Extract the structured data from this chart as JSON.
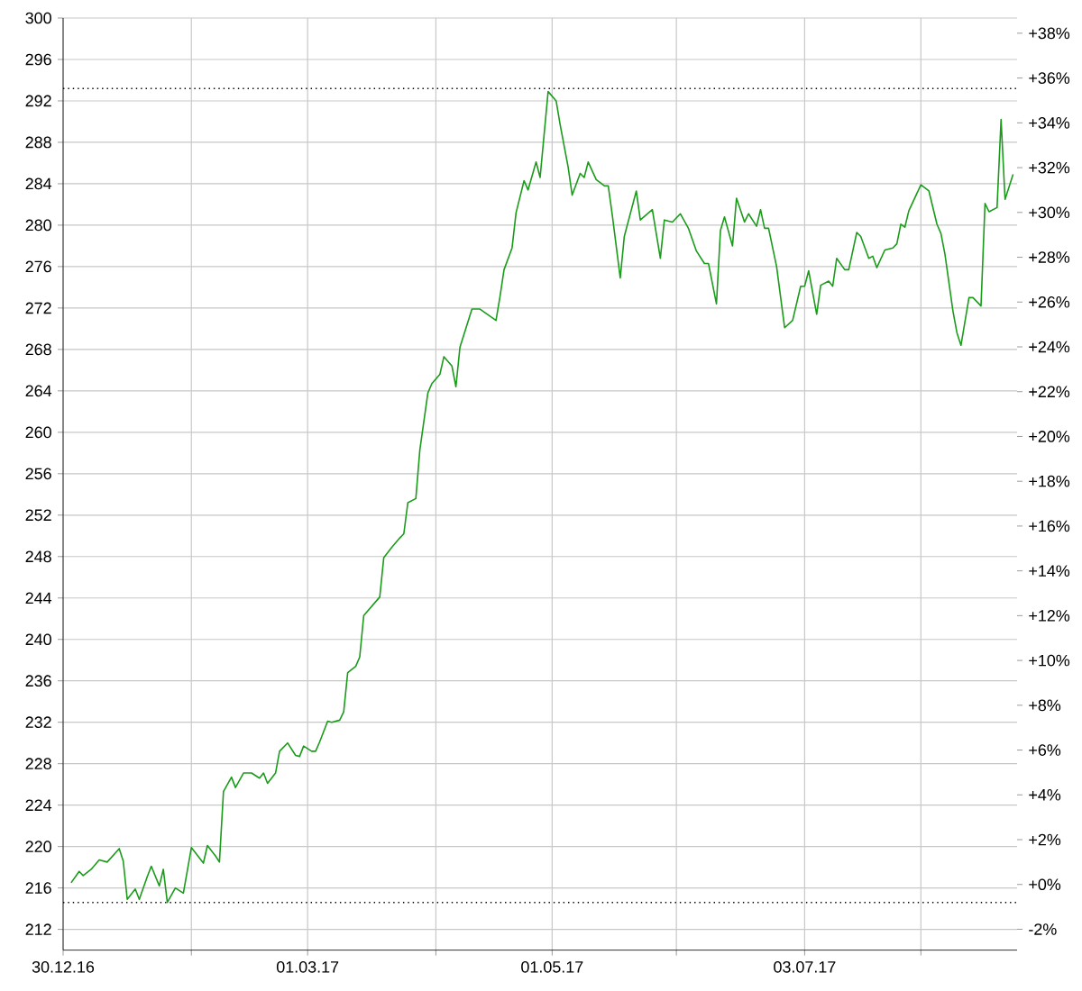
{
  "chart_data": {
    "type": "line",
    "x": [
      "2017-01-01",
      "2017-01-03",
      "2017-01-04",
      "2017-01-06",
      "2017-01-08",
      "2017-01-10",
      "2017-01-13",
      "2017-01-14",
      "2017-01-15",
      "2017-01-17",
      "2017-01-18",
      "2017-01-20",
      "2017-01-21",
      "2017-01-23",
      "2017-01-24",
      "2017-01-25",
      "2017-01-27",
      "2017-01-29",
      "2017-01-31",
      "2017-02-01",
      "2017-02-03",
      "2017-02-04",
      "2017-02-06",
      "2017-02-07",
      "2017-02-08",
      "2017-02-10",
      "2017-02-11",
      "2017-02-13",
      "2017-02-15",
      "2017-02-17",
      "2017-02-18",
      "2017-02-19",
      "2017-02-21",
      "2017-02-22",
      "2017-02-24",
      "2017-02-26",
      "2017-02-27",
      "2017-02-28",
      "2017-03-02",
      "2017-03-03",
      "2017-03-04",
      "2017-03-06",
      "2017-03-07",
      "2017-03-09",
      "2017-03-10",
      "2017-03-11",
      "2017-03-13",
      "2017-03-14",
      "2017-03-15",
      "2017-03-17",
      "2017-03-19",
      "2017-03-20",
      "2017-03-22",
      "2017-03-24",
      "2017-03-25",
      "2017-03-26",
      "2017-03-28",
      "2017-03-29",
      "2017-03-31",
      "2017-04-01",
      "2017-04-03",
      "2017-04-04",
      "2017-04-06",
      "2017-04-07",
      "2017-04-08",
      "2017-04-11",
      "2017-04-13",
      "2017-04-17",
      "2017-04-18",
      "2017-04-19",
      "2017-04-21",
      "2017-04-22",
      "2017-04-24",
      "2017-04-25",
      "2017-04-27",
      "2017-04-28",
      "2017-04-30",
      "2017-05-02",
      "2017-05-03",
      "2017-05-05",
      "2017-05-06",
      "2017-05-08",
      "2017-05-09",
      "2017-05-10",
      "2017-05-12",
      "2017-05-14",
      "2017-05-15",
      "2017-05-16",
      "2017-05-18",
      "2017-05-19",
      "2017-05-22",
      "2017-05-23",
      "2017-05-26",
      "2017-05-28",
      "2017-05-29",
      "2017-05-31",
      "2017-06-02",
      "2017-06-04",
      "2017-06-06",
      "2017-06-08",
      "2017-06-09",
      "2017-06-11",
      "2017-06-12",
      "2017-06-13",
      "2017-06-15",
      "2017-06-16",
      "2017-06-18",
      "2017-06-19",
      "2017-06-21",
      "2017-06-22",
      "2017-06-23",
      "2017-06-24",
      "2017-06-26",
      "2017-06-28",
      "2017-06-30",
      "2017-07-02",
      "2017-07-03",
      "2017-07-04",
      "2017-07-06",
      "2017-07-07",
      "2017-07-09",
      "2017-07-10",
      "2017-07-11",
      "2017-07-13",
      "2017-07-14",
      "2017-07-16",
      "2017-07-17",
      "2017-07-19",
      "2017-07-20",
      "2017-07-21",
      "2017-07-23",
      "2017-07-25",
      "2017-07-26",
      "2017-07-27",
      "2017-07-28",
      "2017-07-29",
      "2017-08-01",
      "2017-08-03",
      "2017-08-05",
      "2017-08-06",
      "2017-08-07",
      "2017-08-09",
      "2017-08-10",
      "2017-08-11",
      "2017-08-13",
      "2017-08-14",
      "2017-08-16",
      "2017-08-17",
      "2017-08-18",
      "2017-08-20",
      "2017-08-21",
      "2017-08-22",
      "2017-08-24"
    ],
    "series": [
      {
        "color": "#1a9c1a",
        "values": [
          216.5,
          217.6,
          217.2,
          217.8,
          218.7,
          218.5,
          219.8,
          218.6,
          214.9,
          215.9,
          214.9,
          217.1,
          218.1,
          216.2,
          217.8,
          214.6,
          216.0,
          215.5,
          219.9,
          219.4,
          218.4,
          220.1,
          219.1,
          218.5,
          225.3,
          226.7,
          225.7,
          227.1,
          227.1,
          226.6,
          227.1,
          226.1,
          227.1,
          229.2,
          230.0,
          228.8,
          228.7,
          229.7,
          229.2,
          229.2,
          230.1,
          232.1,
          232.0,
          232.2,
          233.0,
          236.8,
          237.4,
          238.3,
          242.3,
          243.2,
          244.1,
          247.9,
          248.9,
          249.8,
          250.2,
          253.2,
          253.6,
          258.3,
          263.8,
          264.7,
          265.6,
          267.3,
          266.4,
          264.4,
          268.2,
          271.9,
          271.9,
          270.8,
          273.1,
          275.7,
          277.8,
          281.2,
          284.3,
          283.4,
          286.1,
          284.6,
          292.9,
          292.0,
          289.7,
          285.6,
          282.9,
          285.0,
          284.6,
          286.1,
          284.4,
          283.8,
          283.8,
          281.0,
          274.9,
          278.9,
          283.3,
          280.5,
          281.5,
          276.8,
          280.5,
          280.3,
          281.1,
          279.7,
          277.5,
          276.3,
          276.3,
          272.4,
          279.5,
          280.8,
          278.0,
          282.6,
          280.3,
          281.1,
          279.9,
          281.5,
          279.7,
          279.7,
          276.0,
          270.1,
          270.8,
          274.1,
          274.1,
          275.6,
          271.4,
          274.2,
          274.6,
          274.1,
          276.8,
          275.7,
          275.7,
          279.3,
          278.9,
          276.8,
          277.0,
          275.9,
          277.6,
          277.8,
          278.2,
          280.1,
          279.8,
          281.4,
          283.9,
          283.3,
          280.1,
          279.2,
          277.2,
          271.7,
          269.6,
          268.4,
          273.0,
          273.0,
          272.2,
          282.1,
          281.3,
          281.7,
          290.2,
          282.5,
          284.9
        ]
      }
    ],
    "xlim": [
      "2016-12-30",
      "2017-08-25"
    ],
    "xticks": [
      {
        "value": "2016-12-30",
        "label": "30.12.16"
      },
      {
        "value": "2017-01-31",
        "label": null
      },
      {
        "value": "2017-03-01",
        "label": "01.03.17"
      },
      {
        "value": "2017-04-02",
        "label": null
      },
      {
        "value": "2017-05-01",
        "label": "01.05.17"
      },
      {
        "value": "2017-06-01",
        "label": null
      },
      {
        "value": "2017-07-03",
        "label": "03.07.17"
      },
      {
        "value": "2017-08-01",
        "label": null
      }
    ],
    "ylim": [
      210,
      300
    ],
    "yticks": [
      212,
      216,
      220,
      224,
      228,
      232,
      236,
      240,
      244,
      248,
      252,
      256,
      260,
      264,
      268,
      272,
      276,
      280,
      284,
      288,
      292,
      296,
      300
    ],
    "y2lim": [
      -2.93,
      38.68
    ],
    "y2ticks": [
      {
        "value": -2,
        "label": "-2%"
      },
      {
        "value": 0,
        "label": "+0%"
      },
      {
        "value": 2,
        "label": "+2%"
      },
      {
        "value": 4,
        "label": "+4%"
      },
      {
        "value": 6,
        "label": "+6%"
      },
      {
        "value": 8,
        "label": "+8%"
      },
      {
        "value": 10,
        "label": "+10%"
      },
      {
        "value": 12,
        "label": "+12%"
      },
      {
        "value": 14,
        "label": "+14%"
      },
      {
        "value": 16,
        "label": "+16%"
      },
      {
        "value": 18,
        "label": "+18%"
      },
      {
        "value": 20,
        "label": "+20%"
      },
      {
        "value": 22,
        "label": "+22%"
      },
      {
        "value": 24,
        "label": "+24%"
      },
      {
        "value": 26,
        "label": "+26%"
      },
      {
        "value": 28,
        "label": "+28%"
      },
      {
        "value": 30,
        "label": "+30%"
      },
      {
        "value": 32,
        "label": "+32%"
      },
      {
        "value": 34,
        "label": "+34%"
      },
      {
        "value": 36,
        "label": "+36%"
      },
      {
        "value": 38,
        "label": "+38%"
      }
    ],
    "ref_lines": [
      {
        "axis": "y",
        "value": 293.2,
        "color": "#000000",
        "line_style": "dotted"
      },
      {
        "axis": "y",
        "value": 214.6,
        "color": "#000000",
        "line_style": "dotted"
      }
    ],
    "grid": true
  }
}
